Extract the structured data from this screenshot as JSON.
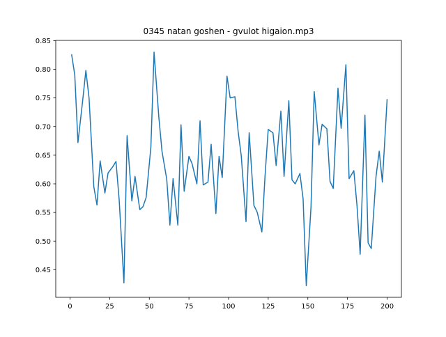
{
  "chart_data": {
    "type": "line",
    "title": "0345 natan goshen - gvulot higaion.mp3",
    "xlabel": "",
    "ylabel": "",
    "xlim": [
      -9,
      209
    ],
    "ylim": [
      0.4018,
      0.8505
    ],
    "xticks": [
      0,
      25,
      50,
      75,
      100,
      125,
      150,
      175,
      200
    ],
    "xtick_labels": [
      "0",
      "25",
      "50",
      "75",
      "100",
      "125",
      "150",
      "175",
      "200"
    ],
    "yticks": [
      0.45,
      0.5,
      0.55,
      0.6,
      0.65,
      0.7,
      0.75,
      0.8,
      0.85
    ],
    "ytick_labels": [
      "0.45",
      "0.50",
      "0.55",
      "0.60",
      "0.65",
      "0.70",
      "0.75",
      "0.80",
      "0.85"
    ],
    "grid": false,
    "line_color": "#1f77b4",
    "series": [
      {
        "x": [
          1,
          3,
          5,
          8,
          10,
          12,
          15,
          17,
          19,
          22,
          24,
          27,
          29,
          31,
          34,
          36,
          39,
          41,
          44,
          46,
          48,
          51,
          53,
          56,
          58,
          61,
          63,
          65,
          68,
          70,
          72,
          75,
          77,
          80,
          82,
          84,
          87,
          89,
          92,
          94,
          96,
          99,
          101,
          104,
          106,
          108,
          111,
          113,
          116,
          118,
          121,
          123,
          125,
          128,
          130,
          133,
          135,
          138,
          140,
          142,
          145,
          147,
          149,
          152,
          154,
          157,
          159,
          162,
          164,
          166,
          169,
          171,
          174,
          176,
          179,
          181,
          183,
          186,
          188,
          190,
          193,
          195,
          197,
          200
        ],
        "values": [
          0.826,
          0.79,
          0.672,
          0.746,
          0.798,
          0.75,
          0.595,
          0.563,
          0.64,
          0.584,
          0.619,
          0.63,
          0.639,
          0.572,
          0.427,
          0.684,
          0.57,
          0.613,
          0.555,
          0.56,
          0.576,
          0.664,
          0.83,
          0.717,
          0.657,
          0.608,
          0.528,
          0.609,
          0.528,
          0.703,
          0.587,
          0.648,
          0.635,
          0.6,
          0.71,
          0.598,
          0.603,
          0.669,
          0.548,
          0.648,
          0.611,
          0.788,
          0.75,
          0.752,
          0.692,
          0.649,
          0.534,
          0.689,
          0.562,
          0.551,
          0.516,
          0.614,
          0.695,
          0.689,
          0.632,
          0.727,
          0.613,
          0.745,
          0.607,
          0.6,
          0.618,
          0.574,
          0.422,
          0.56,
          0.761,
          0.668,
          0.704,
          0.696,
          0.604,
          0.592,
          0.767,
          0.697,
          0.808,
          0.609,
          0.623,
          0.562,
          0.477,
          0.72,
          0.497,
          0.487,
          0.613,
          0.657,
          0.603,
          0.748
        ]
      }
    ]
  }
}
